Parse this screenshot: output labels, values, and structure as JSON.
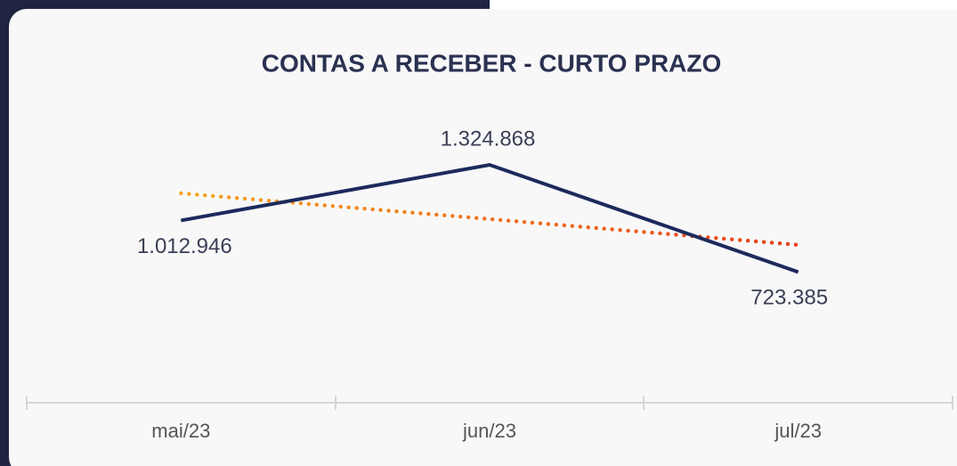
{
  "chart_data": {
    "type": "line",
    "title": "CONTAS A RECEBER - CURTO PRAZO",
    "categories": [
      "mai/23",
      "jun/23",
      "jul/23"
    ],
    "values": [
      1012946,
      1324868,
      723385
    ],
    "value_labels": [
      "1.012.946",
      "1.324.868",
      "723.385"
    ],
    "color": "#1d2a5c",
    "trendline": {
      "values": [
        1165180,
        1020400,
        875619
      ],
      "colors": [
        "#f5a623",
        "#e8401c"
      ]
    },
    "ylim": [
      0,
      1750000
    ]
  }
}
